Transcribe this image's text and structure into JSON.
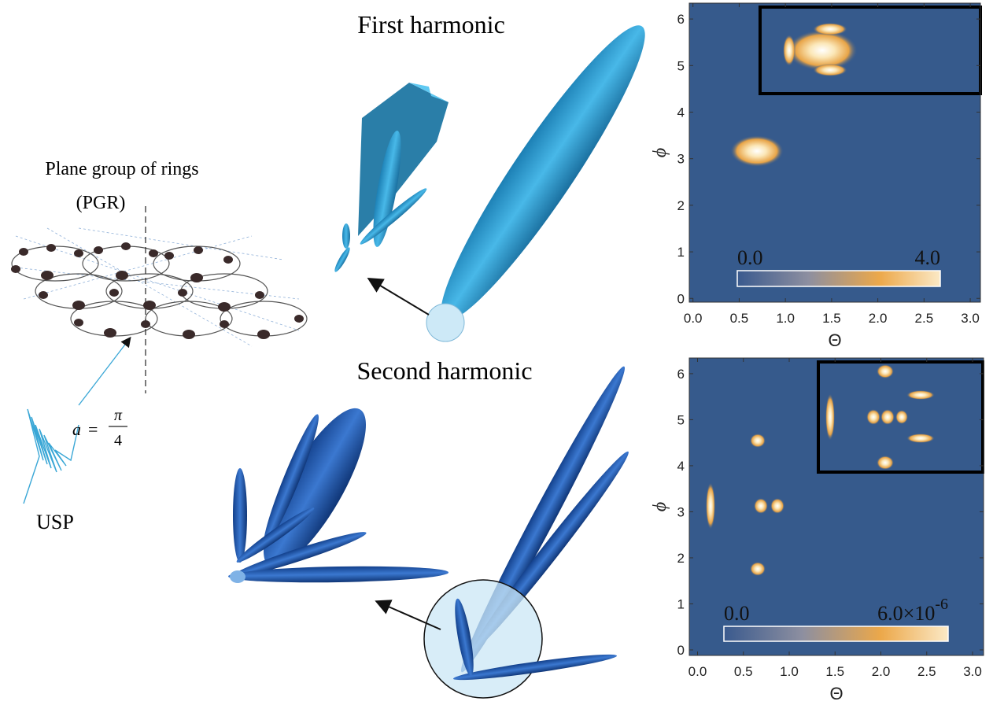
{
  "illustration": {
    "structure_title": "Plane group of rings",
    "structure_abbr": "(PGR)",
    "angle_symbol": "a",
    "angle_equals": "=",
    "angle_numerator": "π",
    "angle_denominator": "4",
    "pulse_label": "USP",
    "first_title": "First harmonic",
    "second_title": "Second harmonic"
  },
  "chart_data": [
    {
      "type": "heatmap",
      "xlabel": "Θ",
      "ylabel": "ϕ",
      "xlim": [
        -0.04,
        3.11
      ],
      "ylim": [
        -0.08,
        6.34
      ],
      "xticks": [
        {
          "value": 0,
          "label": "0.0"
        },
        {
          "value": 0.5,
          "label": "0.5"
        },
        {
          "value": 1,
          "label": "1.0"
        },
        {
          "value": 1.5,
          "label": "1.5"
        },
        {
          "value": 2,
          "label": "2.0"
        },
        {
          "value": 2.5,
          "label": "2.5"
        },
        {
          "value": 3,
          "label": "3.0"
        }
      ],
      "yticks": [
        0,
        1,
        2,
        3,
        4,
        5,
        6
      ],
      "clim": [
        0,
        4
      ],
      "colorbar_ticks": [
        {
          "value": 0,
          "label": "0.0"
        },
        {
          "value": 4,
          "label": "4.0"
        }
      ]
    },
    {
      "type": "heatmap",
      "xlabel": "Θ",
      "ylabel": "ϕ",
      "xlim": [
        -0.09,
        3.12
      ],
      "ylim": [
        -0.12,
        6.34
      ],
      "xticks": [
        {
          "value": 0,
          "label": "0.0"
        },
        {
          "value": 0.5,
          "label": "0.5"
        },
        {
          "value": 1,
          "label": "1.0"
        },
        {
          "value": 1.5,
          "label": "1.5"
        },
        {
          "value": 2,
          "label": "2.0"
        },
        {
          "value": 2.5,
          "label": "2.5"
        },
        {
          "value": 3,
          "label": "3.0"
        }
      ],
      "yticks": [
        0,
        1,
        2,
        3,
        4,
        5,
        6
      ],
      "clim": [
        0,
        6e-06
      ],
      "colorbar_ticks": [
        {
          "value": 0,
          "label": "0.0"
        },
        {
          "value": 6e-06,
          "label": "6.0×10",
          "exponent": "-6"
        }
      ]
    }
  ]
}
